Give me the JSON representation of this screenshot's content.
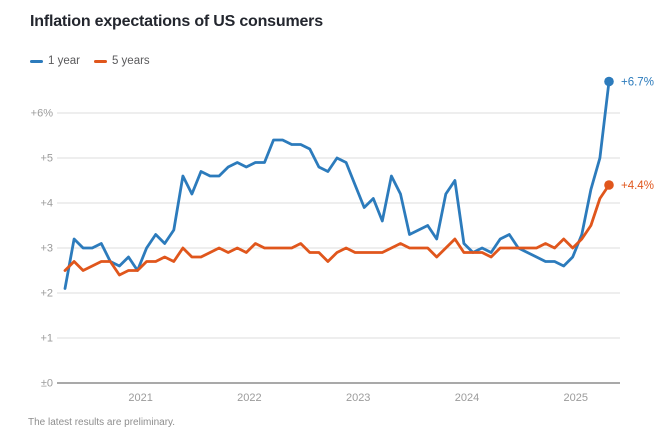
{
  "title": "Inflation expectations of US consumers",
  "footnote": "The latest results are preliminary.",
  "colors": {
    "series_1yr": "#2c7bbc",
    "series_5yr": "#e0561c",
    "gridline": "#dcdcdc",
    "baseline": "#a9a9a9",
    "axis_text": "#9b9b9b",
    "title_text": "#23262e"
  },
  "legend": [
    {
      "label": "1 year",
      "color": "#2c7bbc"
    },
    {
      "label": "5 years",
      "color": "#e0561c"
    }
  ],
  "chart_data": {
    "type": "line",
    "title": "Inflation expectations of US consumers",
    "unit": "percent",
    "frequency": "monthly",
    "x_start": "2020-04",
    "x_end": "2025-04",
    "ylim": [
      0,
      6.9
    ],
    "grid": "horizontal",
    "legend_position": "top-left",
    "y_axis": {
      "ticks": [
        {
          "label": "+6%",
          "value": 6
        },
        {
          "label": "+5",
          "value": 5
        },
        {
          "label": "+4",
          "value": 4
        },
        {
          "label": "+3",
          "value": 3
        },
        {
          "label": "+2",
          "value": 2
        },
        {
          "label": "+1",
          "value": 1
        },
        {
          "label": "±0",
          "value": 0
        }
      ]
    },
    "x_axis": {
      "ticks": [
        {
          "label": "2021",
          "month_index": 9
        },
        {
          "label": "2022",
          "month_index": 21
        },
        {
          "label": "2023",
          "month_index": 33
        },
        {
          "label": "2024",
          "month_index": 45
        },
        {
          "label": "2025",
          "month_index": 57
        }
      ]
    },
    "series": [
      {
        "name": "1 year",
        "color": "#2c7bbc",
        "end_label": "+6.7%",
        "values": [
          2.1,
          3.2,
          3.0,
          3.0,
          3.1,
          2.7,
          2.6,
          2.8,
          2.5,
          3.0,
          3.3,
          3.1,
          3.4,
          4.6,
          4.2,
          4.7,
          4.6,
          4.6,
          4.8,
          4.9,
          4.8,
          4.9,
          4.9,
          5.4,
          5.4,
          5.3,
          5.3,
          5.2,
          4.8,
          4.7,
          5.0,
          4.9,
          4.4,
          3.9,
          4.1,
          3.6,
          4.6,
          4.2,
          3.3,
          3.4,
          3.5,
          3.2,
          4.2,
          4.5,
          3.1,
          2.9,
          3.0,
          2.9,
          3.2,
          3.3,
          3.0,
          2.9,
          2.8,
          2.7,
          2.7,
          2.6,
          2.8,
          3.3,
          4.3,
          5.0,
          6.7
        ]
      },
      {
        "name": "5 years",
        "color": "#e0561c",
        "end_label": "+4.4%",
        "values": [
          2.5,
          2.7,
          2.5,
          2.6,
          2.7,
          2.7,
          2.4,
          2.5,
          2.5,
          2.7,
          2.7,
          2.8,
          2.7,
          3.0,
          2.8,
          2.8,
          2.9,
          3.0,
          2.9,
          3.0,
          2.9,
          3.1,
          3.0,
          3.0,
          3.0,
          3.0,
          3.1,
          2.9,
          2.9,
          2.7,
          2.9,
          3.0,
          2.9,
          2.9,
          2.9,
          2.9,
          3.0,
          3.1,
          3.0,
          3.0,
          3.0,
          2.8,
          3.0,
          3.2,
          2.9,
          2.9,
          2.9,
          2.8,
          3.0,
          3.0,
          3.0,
          3.0,
          3.0,
          3.1,
          3.0,
          3.2,
          3.0,
          3.2,
          3.5,
          4.1,
          4.4
        ]
      }
    ]
  }
}
